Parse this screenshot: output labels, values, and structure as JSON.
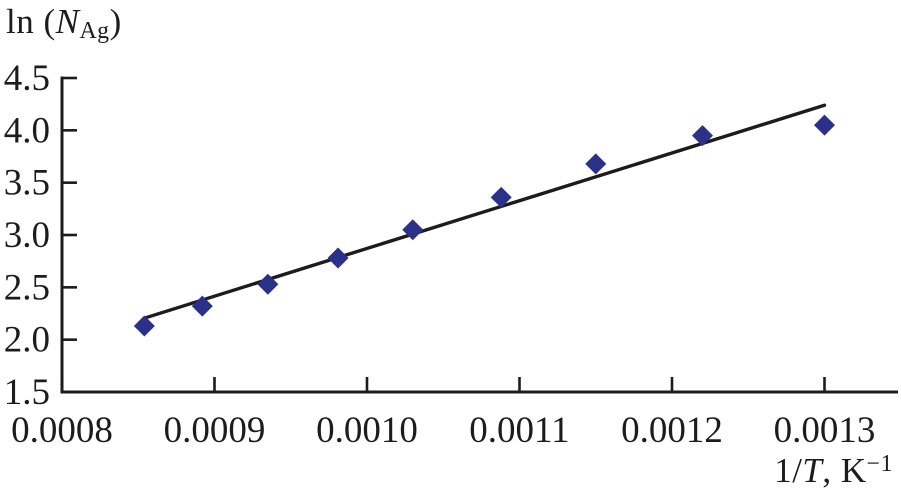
{
  "chart_data": {
    "type": "scatter",
    "title": "",
    "legend": "none",
    "grid": false,
    "frame": "left-bottom-axes-only",
    "x_axis": {
      "label": "1/T, K^-1",
      "label_parts": [
        {
          "t": "1/",
          "style": "normal"
        },
        {
          "t": "T",
          "style": "italic"
        },
        {
          "t": ", K",
          "style": "normal"
        },
        {
          "t": "−1",
          "style": "sup"
        }
      ],
      "xlim": [
        0.0008,
        0.001348
      ],
      "tick_values": [
        0.0008,
        0.0009,
        0.001,
        0.0011,
        0.0012,
        0.0013
      ],
      "tick_labels": [
        "0.0008",
        "0.0009",
        "0.0010",
        "0.0011",
        "0.0012",
        "0.0013"
      ]
    },
    "y_axis": {
      "label": "ln(N_Ag)",
      "label_parts": [
        {
          "t": "ln (",
          "style": "normal"
        },
        {
          "t": "N",
          "style": "italic"
        },
        {
          "t": "Ag",
          "style": "sub"
        },
        {
          "t": ")",
          "style": "normal"
        }
      ],
      "ylim": [
        1.5,
        4.5
      ],
      "tick_values": [
        1.5,
        2.0,
        2.5,
        3.0,
        3.5,
        4.0,
        4.5
      ],
      "tick_labels": [
        "1.5",
        "2.0",
        "2.5",
        "3.0",
        "3.5",
        "4.0",
        "4.5"
      ]
    },
    "series": [
      {
        "name": "measured-points",
        "kind": "scatter",
        "marker": "diamond",
        "color": "#2b3189",
        "points": [
          [
            0.000854,
            2.13
          ],
          [
            0.000892,
            2.32
          ],
          [
            0.000935,
            2.53
          ],
          [
            0.000981,
            2.78
          ],
          [
            0.00103,
            3.05
          ],
          [
            0.001088,
            3.36
          ],
          [
            0.00115,
            3.68
          ],
          [
            0.00122,
            3.95
          ],
          [
            0.0013,
            4.05
          ]
        ]
      },
      {
        "name": "linear-fit-line",
        "kind": "line",
        "color": "#1c1c1c",
        "points": [
          [
            0.000855,
            2.21
          ],
          [
            0.0013,
            4.24
          ]
        ]
      }
    ],
    "styles": {
      "axis_color": "#1c1c1c",
      "background": "#ffffff",
      "tick_direction": "in",
      "marker_color": "#2b3189"
    }
  }
}
